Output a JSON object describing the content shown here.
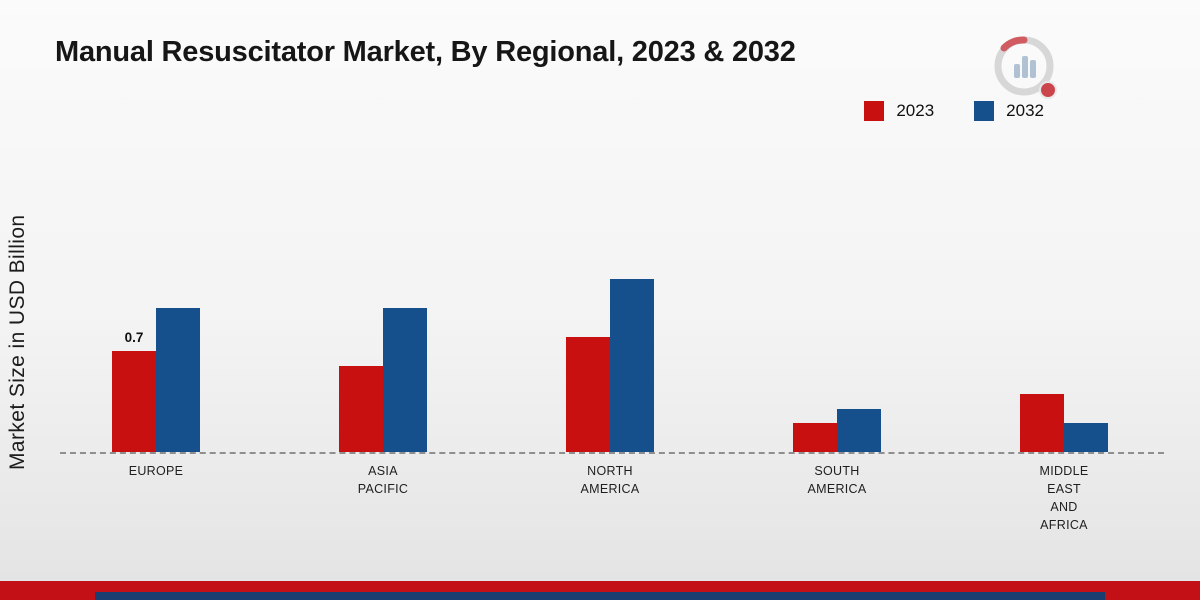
{
  "title": "Manual Resuscitator Market, By Regional, 2023 & 2032",
  "y_axis_label": "Market Size in USD Billion",
  "legend": [
    {
      "label": "2023",
      "color": "#c81010"
    },
    {
      "label": "2032",
      "color": "#15508c"
    }
  ],
  "chart_data": {
    "type": "bar",
    "title": "Manual Resuscitator Market, By Regional, 2023 & 2032",
    "ylabel": "Market Size in USD Billion",
    "xlabel": "",
    "ylim": [
      0,
      1.4
    ],
    "grid": false,
    "legend_position": "top-right",
    "baseline_style": "dashed",
    "categories": [
      "Europe",
      "Asia Pacific",
      "North America",
      "South America",
      "Middle East and Africa"
    ],
    "category_lines": [
      [
        "EUROPE"
      ],
      [
        "ASIA",
        "PACIFIC"
      ],
      [
        "NORTH",
        "AMERICA"
      ],
      [
        "SOUTH",
        "AMERICA"
      ],
      [
        "MIDDLE",
        "EAST",
        "AND",
        "AFRICA"
      ]
    ],
    "series": [
      {
        "name": "2023",
        "color": "#c81010",
        "values": [
          0.7,
          0.6,
          0.8,
          0.2,
          0.4
        ]
      },
      {
        "name": "2032",
        "color": "#15508c",
        "values": [
          1.0,
          1.0,
          1.2,
          0.3,
          0.2
        ]
      }
    ],
    "annotations": [
      {
        "series": "2023",
        "category_index": 0,
        "text": "0.7"
      }
    ]
  },
  "footer": {
    "red_color": "#c31017",
    "navy_color": "#1b3e70"
  }
}
